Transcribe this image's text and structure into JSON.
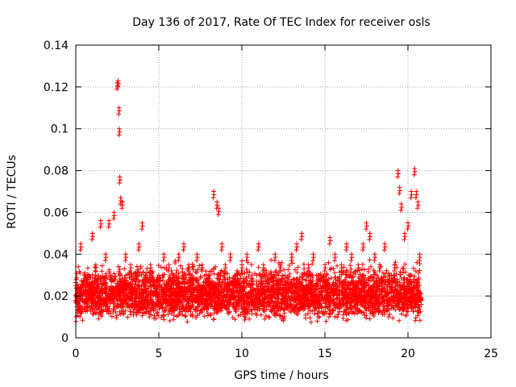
{
  "chart_data": {
    "type": "scatter",
    "title": "Day 136 of 2017, Rate Of TEC Index for receiver osls",
    "xlabel": "GPS time / hours",
    "ylabel": "ROTI / TECUs",
    "xlim": [
      0,
      25
    ],
    "ylim": [
      0,
      0.14
    ],
    "x_ticks": [
      "0",
      "5",
      "10",
      "15",
      "20",
      "25"
    ],
    "y_ticks": [
      "0",
      "0.02",
      "0.04",
      "0.06",
      "0.08",
      "0.1",
      "0.12",
      "0.14"
    ],
    "grid": true,
    "marker": "+",
    "color": "#ff0000",
    "series": [
      {
        "x": [
          0.1,
          0.3,
          0.5,
          0.8,
          1.0,
          1.2,
          1.5,
          1.8,
          2.0,
          2.3,
          2.5,
          2.55,
          2.6,
          2.62,
          2.65,
          2.7,
          2.8,
          3.0,
          3.3,
          3.6,
          3.8,
          4.0,
          4.2,
          4.5,
          4.8,
          5.0,
          5.3,
          5.6,
          5.9,
          6.2,
          6.5,
          6.8,
          7.0,
          7.3,
          7.6,
          8.0,
          8.3,
          8.5,
          8.6,
          8.8,
          9.0,
          9.3,
          9.6,
          10.0,
          10.3,
          10.6,
          11.0,
          11.3,
          11.6,
          12.0,
          12.3,
          12.6,
          13.0,
          13.3,
          13.6,
          14.0,
          14.3,
          14.6,
          15.0,
          15.3,
          15.6,
          16.0,
          16.3,
          16.6,
          17.0,
          17.3,
          17.5,
          17.7,
          18.0,
          18.3,
          18.6,
          19.0,
          19.2,
          19.4,
          19.5,
          19.6,
          19.8,
          20.0,
          20.2,
          20.4,
          20.5,
          20.6,
          20.7
        ],
        "y": [
          0.02,
          0.045,
          0.03,
          0.025,
          0.05,
          0.035,
          0.056,
          0.04,
          0.056,
          0.06,
          0.122,
          0.123,
          0.11,
          0.1,
          0.077,
          0.067,
          0.065,
          0.04,
          0.035,
          0.03,
          0.045,
          0.055,
          0.03,
          0.035,
          0.025,
          0.03,
          0.04,
          0.035,
          0.03,
          0.04,
          0.045,
          0.035,
          0.03,
          0.04,
          0.035,
          0.03,
          0.07,
          0.065,
          0.062,
          0.045,
          0.035,
          0.04,
          0.03,
          0.035,
          0.04,
          0.03,
          0.045,
          0.035,
          0.03,
          0.04,
          0.035,
          0.03,
          0.04,
          0.045,
          0.05,
          0.035,
          0.04,
          0.03,
          0.035,
          0.048,
          0.04,
          0.035,
          0.045,
          0.04,
          0.035,
          0.045,
          0.055,
          0.05,
          0.04,
          0.035,
          0.045,
          0.03,
          0.035,
          0.08,
          0.072,
          0.064,
          0.05,
          0.055,
          0.07,
          0.081,
          0.07,
          0.065,
          0.04
        ]
      }
    ]
  }
}
